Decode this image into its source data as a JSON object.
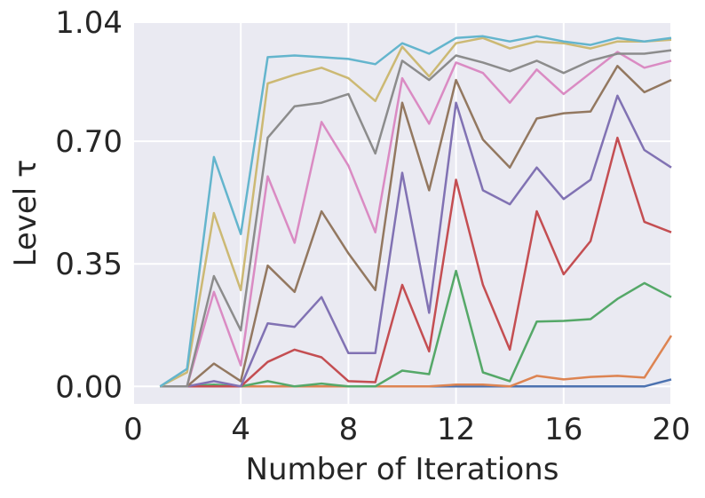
{
  "chart_data": {
    "type": "line",
    "title": "",
    "xlabel": "Number of Iterations",
    "ylabel": "Level τ",
    "xlim": [
      0,
      20
    ],
    "ylim": [
      -0.05,
      1.04
    ],
    "xticks": [
      0,
      4,
      8,
      12,
      16,
      20
    ],
    "xtick_labels": [
      "0",
      "4",
      "8",
      "12",
      "16",
      "20"
    ],
    "yticks": [
      0.0,
      0.35,
      0.7,
      1.04
    ],
    "ytick_labels": [
      "0.00",
      "0.35",
      "0.70",
      "1.04"
    ],
    "grid": true,
    "background_color": "#eaeaf2",
    "x": [
      1,
      2,
      3,
      4,
      5,
      6,
      7,
      8,
      9,
      10,
      11,
      12,
      13,
      14,
      15,
      16,
      17,
      18,
      19,
      20
    ],
    "series": [
      {
        "color": "#4c72b0",
        "values": [
          0.0,
          0.0,
          0.0,
          0.0,
          0.0,
          0.0,
          0.0,
          0.0,
          0.0,
          0.0,
          0.0,
          0.0,
          0.0,
          0.0,
          0.0,
          0.0,
          0.0,
          0.0,
          0.0,
          0.02
        ]
      },
      {
        "color": "#dd8452",
        "values": [
          0.0,
          0.0,
          0.0,
          0.0,
          0.0,
          0.0,
          0.0,
          0.0,
          0.0,
          0.0,
          0.0,
          0.005,
          0.005,
          0.0,
          0.03,
          0.02,
          0.027,
          0.03,
          0.025,
          0.145
        ]
      },
      {
        "color": "#55a868",
        "values": [
          0.0,
          0.0,
          0.005,
          0.0,
          0.015,
          0.0,
          0.008,
          0.0,
          0.0,
          0.045,
          0.035,
          0.33,
          0.04,
          0.015,
          0.185,
          0.187,
          0.192,
          0.25,
          0.295,
          0.255
        ]
      },
      {
        "color": "#c44e52",
        "values": [
          0.0,
          0.0,
          0.0,
          0.0,
          0.07,
          0.105,
          0.083,
          0.015,
          0.012,
          0.29,
          0.1,
          0.59,
          0.29,
          0.105,
          0.5,
          0.32,
          0.415,
          0.71,
          0.47,
          0.44
        ]
      },
      {
        "color": "#8172b3",
        "values": [
          0.0,
          0.0,
          0.015,
          0.0,
          0.18,
          0.17,
          0.255,
          0.095,
          0.095,
          0.61,
          0.21,
          0.81,
          0.56,
          0.52,
          0.625,
          0.535,
          0.59,
          0.83,
          0.675,
          0.625
        ]
      },
      {
        "color": "#937860",
        "values": [
          0.0,
          0.0,
          0.065,
          0.015,
          0.345,
          0.27,
          0.5,
          0.38,
          0.275,
          0.81,
          0.56,
          0.875,
          0.705,
          0.625,
          0.765,
          0.78,
          0.785,
          0.915,
          0.84,
          0.875
        ]
      },
      {
        "color": "#da8bc3",
        "values": [
          0.0,
          0.0,
          0.27,
          0.06,
          0.6,
          0.41,
          0.755,
          0.63,
          0.44,
          0.88,
          0.75,
          0.925,
          0.895,
          0.81,
          0.905,
          0.835,
          0.895,
          0.955,
          0.91,
          0.93
        ]
      },
      {
        "color": "#8c8c8c",
        "values": [
          0.0,
          0.0,
          0.315,
          0.16,
          0.71,
          0.8,
          0.81,
          0.835,
          0.665,
          0.93,
          0.875,
          0.945,
          0.925,
          0.9,
          0.93,
          0.895,
          0.93,
          0.95,
          0.95,
          0.96
        ]
      },
      {
        "color": "#ccb974",
        "values": [
          0.0,
          0.04,
          0.495,
          0.275,
          0.865,
          0.89,
          0.91,
          0.88,
          0.815,
          0.97,
          0.885,
          0.98,
          0.995,
          0.965,
          0.985,
          0.98,
          0.965,
          0.985,
          0.985,
          0.99
        ]
      },
      {
        "color": "#64b5cd",
        "values": [
          0.0,
          0.05,
          0.655,
          0.435,
          0.94,
          0.945,
          0.94,
          0.935,
          0.92,
          0.98,
          0.95,
          0.995,
          1.0,
          0.985,
          1.0,
          0.985,
          0.975,
          0.995,
          0.985,
          0.995
        ]
      }
    ]
  }
}
